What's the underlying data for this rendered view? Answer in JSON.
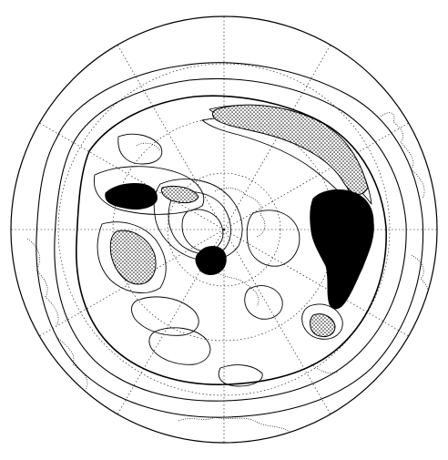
{
  "figure": {
    "projection": "polar-stereographic",
    "colors": {
      "background": "#ffffff",
      "contour": "#000000",
      "grid": "#000000",
      "coast": "#000000",
      "stipple": "#000000",
      "solid_fill": "#000000"
    }
  }
}
